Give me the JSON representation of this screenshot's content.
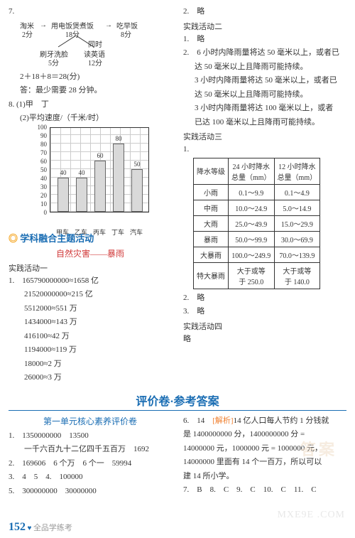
{
  "left": {
    "q7": {
      "num": "7.",
      "tree": {
        "t1": "淘米",
        "t1sub": "2分",
        "t2": "用电饭煲煮饭",
        "t2sub": "18分",
        "t3": "吃早饭",
        "t3sub": "8分",
        "mid": "同时",
        "b1": "刷牙洗脸",
        "b1sub": "5分",
        "b2": "读英语",
        "b2sub": "12分"
      },
      "calc": "2＋18＋8＝28(分)",
      "ans": "答：最少需要 28 分钟。"
    },
    "q8": {
      "num": "8.",
      "part1": "(1)甲　丁",
      "part2": "(2)平均速度/（千米/时）",
      "chart": {
        "yticks": [
          "100",
          "90",
          "80",
          "70",
          "60",
          "50",
          "40",
          "30",
          "20",
          "10",
          "0"
        ],
        "bars": [
          {
            "label": "甲车",
            "val": 40
          },
          {
            "label": "乙车",
            "val": 40
          },
          {
            "label": "丙车",
            "val": 60
          },
          {
            "label": "丁车",
            "val": 80
          },
          {
            "label": "汽车",
            "val": 50
          }
        ]
      }
    },
    "topicHeader": "学科融合主题活动",
    "topicSub": "自然灾害——暴雨",
    "practice1": "实践活动一",
    "approx": [
      "1.　165790000000≈1658 亿",
      "　　21520000000≈215 亿",
      "　　5512000≈551 万",
      "　　1434000≈143 万",
      "　　416100≈42 万",
      "　　1194000≈119 万",
      "　　18000≈2 万",
      "　　26000≈3 万"
    ]
  },
  "right": {
    "skip1": "2.　略",
    "practice2": "实践活动二",
    "skip2": "1.　略",
    "rainDesc": [
      "2.　6 小时内降雨量将达 50 毫米以上，或者已",
      "达 50 毫米以上且降雨可能持续。",
      "3 小时内降雨量将达 50 毫米以上，或者已",
      "达 50 毫米以上且降雨可能持续。",
      "3 小时内降雨量将达 100 毫米以上，或者",
      "已达 100 毫米以上且降雨可能持续。"
    ],
    "practice3": "实践活动三",
    "tnum": "1.",
    "table": {
      "headers": [
        "降水等级",
        "24 小时降水\n总量（mm）",
        "12 小时降水\n总量（mm）"
      ],
      "rows": [
        [
          "小雨",
          "0.1～9.9",
          "0.1～4.9"
        ],
        [
          "中雨",
          "10.0～24.9",
          "5.0～14.9"
        ],
        [
          "大雨",
          "25.0～49.9",
          "15.0～29.9"
        ],
        [
          "暴雨",
          "50.0～99.9",
          "30.0～69.9"
        ],
        [
          "大暴雨",
          "100.0～249.9",
          "70.0～139.9"
        ],
        [
          "特大暴雨",
          "大于或等\n于 250.0",
          "大于或等\n于 140.0"
        ]
      ]
    },
    "skip3": "2.　略",
    "skip4": "3.　略",
    "practice4": "实践活动四",
    "skip5": "略"
  },
  "eval": {
    "header": "评价卷·参考答案",
    "unit": "第一单元核心素养评价卷",
    "leftItems": [
      "1.　1350000000　13500",
      "　　一千六百九十二亿四千五百万　1692",
      "2.　169606　6 个万　6 个一　59994",
      "3.　4　5　4.　100000",
      "5.　300000000　30000000"
    ],
    "rightItems": [
      {
        "pre": "6.　14　",
        "tag": "[解析]",
        "post": "14 亿人口每人节约 1 分钱就"
      },
      {
        "plain": "是 1400000000 分，1400000000 分 ="
      },
      {
        "plain": "14000000 元，1000000 元 = 1000000 元，"
      },
      {
        "plain": "14000000 里面有 14 个一百万，所以可以"
      },
      {
        "plain": "建 14 所小学。"
      },
      {
        "plain": "7.　B　8.　C　9.　C　10.　C　11.　C"
      }
    ]
  },
  "footer": {
    "page": "152",
    "heart": "♥",
    "title": "全品学练考"
  },
  "watermark": "MXE9E .COM",
  "watermark2": "答案"
}
